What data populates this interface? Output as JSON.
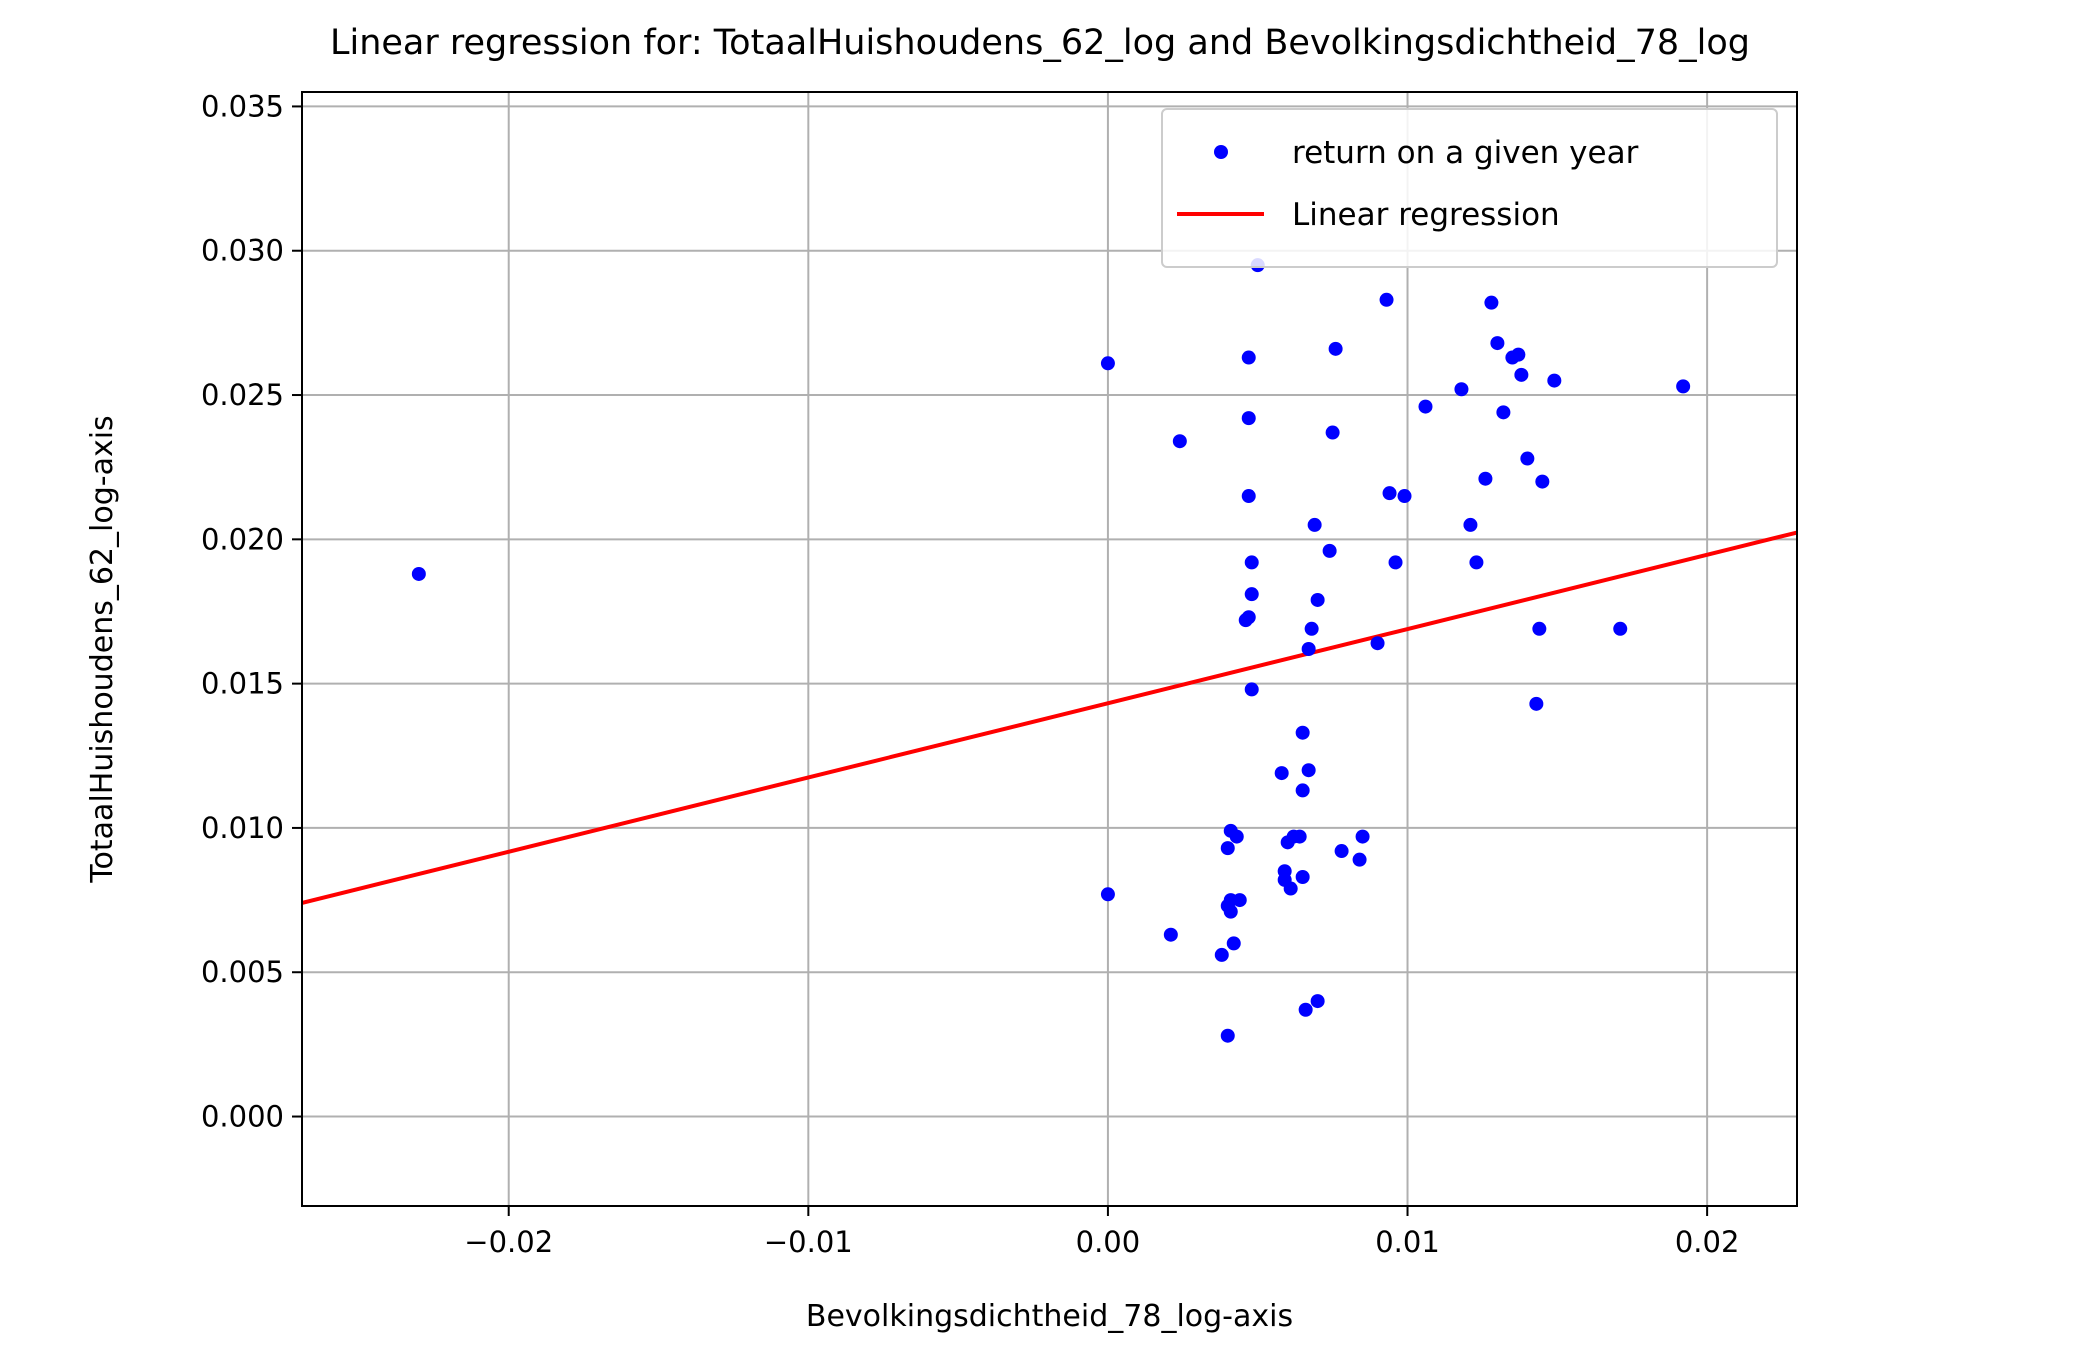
{
  "chart_data": {
    "type": "scatter",
    "title": "Linear regression for: TotaalHuishoudens_62_log and Bevolkingsdichtheid_78_log",
    "xlabel": "Bevolkingsdichtheid_78_log-axis",
    "ylabel": "TotaalHuishoudens_62_log-axis",
    "xlim": [
      -0.0269,
      0.023
    ],
    "ylim": [
      -0.0031,
      0.0355
    ],
    "x_ticks": [
      -0.02,
      -0.01,
      0.0,
      0.01,
      0.02
    ],
    "x_tick_labels": [
      "−0.02",
      "−0.01",
      "0.00",
      "0.01",
      "0.02"
    ],
    "y_ticks": [
      0.0,
      0.005,
      0.01,
      0.015,
      0.02,
      0.025,
      0.03,
      0.035
    ],
    "y_tick_labels": [
      "0.000",
      "0.005",
      "0.010",
      "0.015",
      "0.020",
      "0.025",
      "0.030",
      "0.035"
    ],
    "grid": true,
    "legend_position": "top-right",
    "series": [
      {
        "name": "return on a given year",
        "kind": "scatter",
        "color": "#0000ff",
        "points": [
          [
            -0.023,
            0.0188
          ],
          [
            0.0,
            0.0261
          ],
          [
            0.0,
            0.0077
          ],
          [
            0.0021,
            0.0063
          ],
          [
            0.0024,
            0.0234
          ],
          [
            0.0038,
            0.0056
          ],
          [
            0.004,
            0.0028
          ],
          [
            0.004,
            0.0073
          ],
          [
            0.004,
            0.0093
          ],
          [
            0.0041,
            0.0099
          ],
          [
            0.0041,
            0.0075
          ],
          [
            0.0041,
            0.0071
          ],
          [
            0.0042,
            0.006
          ],
          [
            0.0043,
            0.0097
          ],
          [
            0.0044,
            0.0075
          ],
          [
            0.0046,
            0.0172
          ],
          [
            0.0047,
            0.0173
          ],
          [
            0.0047,
            0.0215
          ],
          [
            0.0047,
            0.0242
          ],
          [
            0.0047,
            0.0263
          ],
          [
            0.0048,
            0.0192
          ],
          [
            0.0048,
            0.0181
          ],
          [
            0.0048,
            0.0148
          ],
          [
            0.005,
            0.0295
          ],
          [
            0.0058,
            0.0119
          ],
          [
            0.0059,
            0.0085
          ],
          [
            0.0059,
            0.0082
          ],
          [
            0.006,
            0.0095
          ],
          [
            0.0061,
            0.0079
          ],
          [
            0.0062,
            0.0097
          ],
          [
            0.0064,
            0.0097
          ],
          [
            0.0065,
            0.0133
          ],
          [
            0.0065,
            0.0113
          ],
          [
            0.0065,
            0.0083
          ],
          [
            0.0066,
            0.0037
          ],
          [
            0.0067,
            0.012
          ],
          [
            0.0067,
            0.0162
          ],
          [
            0.0068,
            0.0169
          ],
          [
            0.0069,
            0.0205
          ],
          [
            0.007,
            0.004
          ],
          [
            0.007,
            0.0179
          ],
          [
            0.0074,
            0.0196
          ],
          [
            0.0075,
            0.0237
          ],
          [
            0.0076,
            0.0266
          ],
          [
            0.0078,
            0.0092
          ],
          [
            0.0084,
            0.0089
          ],
          [
            0.0085,
            0.0097
          ],
          [
            0.009,
            0.0164
          ],
          [
            0.0093,
            0.0283
          ],
          [
            0.0094,
            0.0216
          ],
          [
            0.0096,
            0.0192
          ],
          [
            0.0099,
            0.0215
          ],
          [
            0.0106,
            0.0246
          ],
          [
            0.0118,
            0.0252
          ],
          [
            0.0121,
            0.0205
          ],
          [
            0.0123,
            0.0192
          ],
          [
            0.0126,
            0.0221
          ],
          [
            0.0128,
            0.0282
          ],
          [
            0.013,
            0.0268
          ],
          [
            0.0132,
            0.0244
          ],
          [
            0.0135,
            0.0263
          ],
          [
            0.0137,
            0.0264
          ],
          [
            0.0138,
            0.0257
          ],
          [
            0.014,
            0.0228
          ],
          [
            0.0143,
            0.0143
          ],
          [
            0.0144,
            0.0169
          ],
          [
            0.0145,
            0.022
          ],
          [
            0.0149,
            0.0255
          ],
          [
            0.0171,
            0.0169
          ],
          [
            0.0192,
            0.0253
          ]
        ]
      },
      {
        "name": "Linear regression",
        "kind": "line",
        "color": "#ff0000",
        "intercept": 0.01432,
        "slope": 0.2572
      }
    ]
  }
}
